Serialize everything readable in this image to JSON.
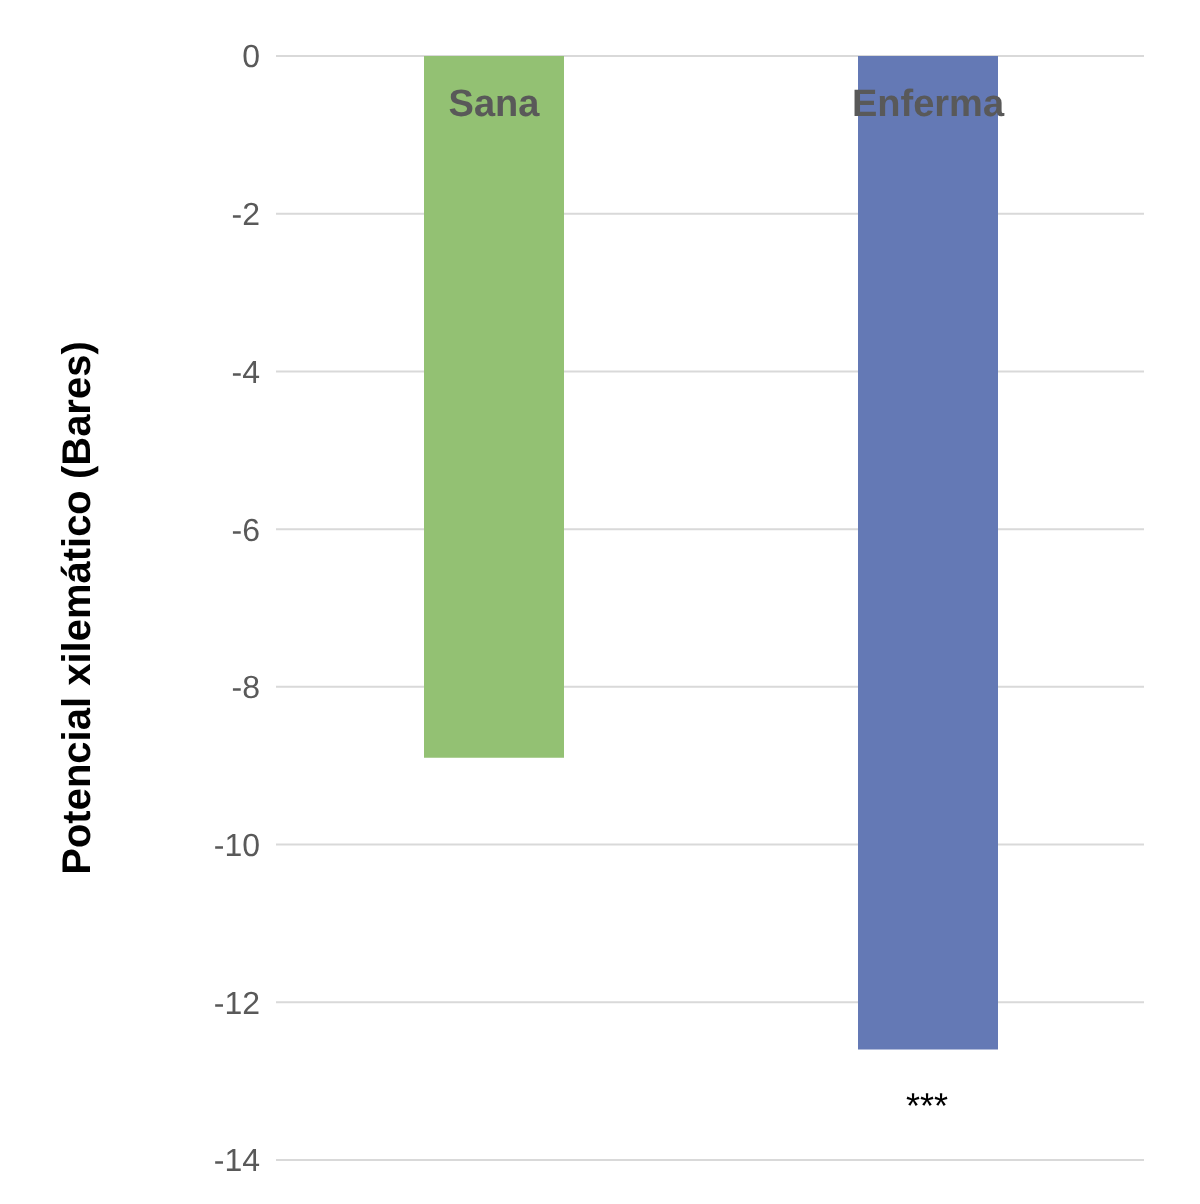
{
  "chart_data": {
    "type": "bar",
    "ylabel": "Potencial xilemático (Bares)",
    "categories": [
      "Sana",
      "Enferma"
    ],
    "values": [
      -8.9,
      -12.6
    ],
    "colors": [
      "#93c173",
      "#6479b5"
    ],
    "ylim": [
      -14,
      0
    ],
    "yticks": [
      0,
      -2,
      -4,
      -6,
      -8,
      -10,
      -12,
      -14
    ],
    "grid": "y",
    "annotations": [
      "***"
    ]
  }
}
